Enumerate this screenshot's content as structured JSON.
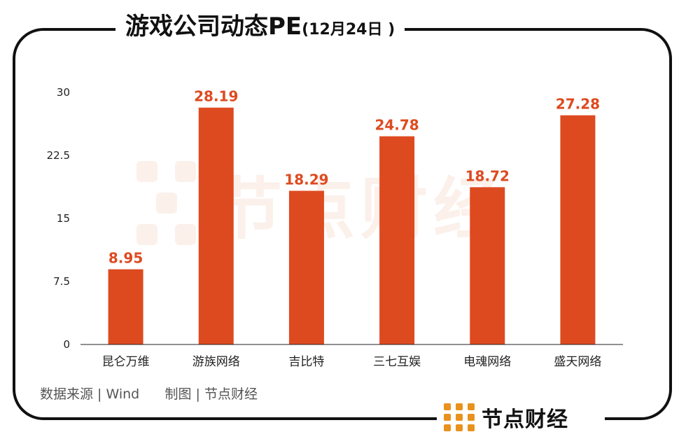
{
  "header": {
    "title": "游戏公司动态PE",
    "date": "(12月24日 )"
  },
  "colors": {
    "bar": "#de4a20",
    "label": "#de4a20",
    "axis": "#222222",
    "text": "#222222"
  },
  "chart_data": {
    "type": "bar",
    "title": "游戏公司动态PE(12月24日 )",
    "categories": [
      "昆仑万维",
      "游族网络",
      "吉比特",
      "三七互娱",
      "电魂网络",
      "盛天网络"
    ],
    "values": [
      8.95,
      28.19,
      18.29,
      24.78,
      18.72,
      27.28
    ],
    "value_labels": [
      "8.95",
      "28.19",
      "18.29",
      "24.78",
      "18.72",
      "27.28"
    ],
    "yticks": [
      0,
      7.5,
      15,
      22.5,
      30
    ],
    "ytick_labels": [
      "0",
      "7.5",
      "15",
      "22.5",
      "30"
    ],
    "ylim": [
      0,
      30
    ],
    "xlabel": "",
    "ylabel": "",
    "grid": false
  },
  "footer": {
    "source": "数据来源 | Wind",
    "credit": "制图 | 节点财经"
  },
  "brand": {
    "name": "节点财经",
    "logo_icon": "dot-grid-logo-icon"
  },
  "watermark": {
    "text": "节点财经"
  }
}
